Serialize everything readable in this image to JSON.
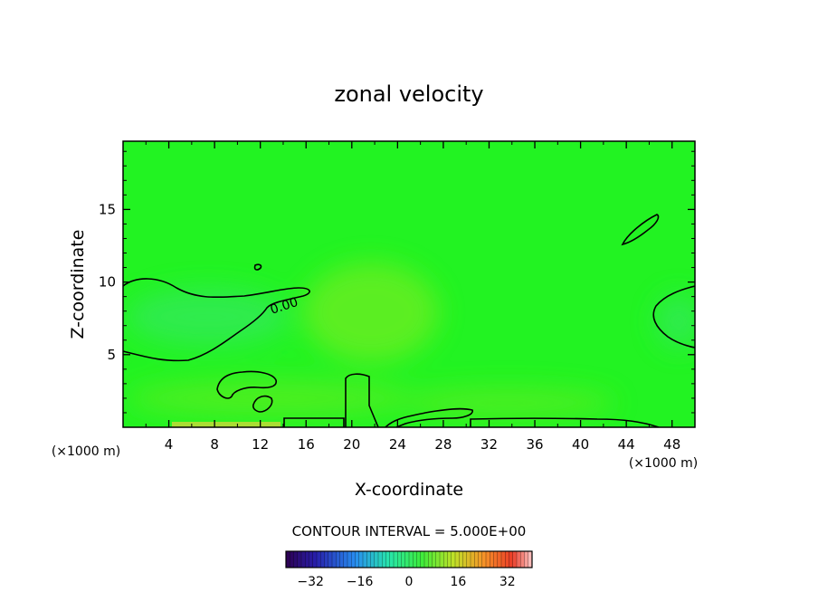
{
  "chart_data": {
    "type": "heatmap",
    "title": "zonal velocity",
    "xlabel": "X-coordinate",
    "ylabel": "Z-coordinate",
    "x_units_left": "(×1000 m)",
    "x_units_right": "(×1000 m)",
    "xlim": [
      0,
      50
    ],
    "ylim": [
      0,
      19.7
    ],
    "x_ticks": [
      4,
      8,
      12,
      16,
      20,
      24,
      28,
      32,
      36,
      40,
      44,
      48
    ],
    "y_ticks": [
      5,
      10,
      15
    ],
    "contour_label": "0.00",
    "contour_interval_text": "CONTOUR INTERVAL = 5.000E+00",
    "colorbar": {
      "range": [
        -40,
        40
      ],
      "ticks": [
        -32,
        -16,
        0,
        16,
        32
      ]
    },
    "fill_colors": {
      "background": "#22f322",
      "negative": "#33ea55",
      "positive": "#66ee22",
      "surface_positive": "#aadd33"
    },
    "grid": false,
    "legend": "none"
  }
}
